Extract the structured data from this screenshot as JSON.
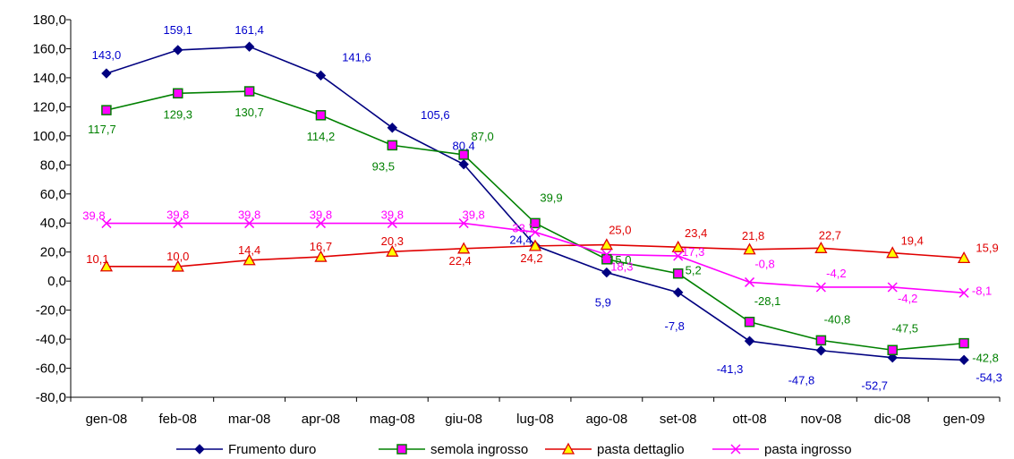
{
  "chart_data": {
    "type": "line",
    "title": "",
    "xlabel": "",
    "ylabel": "",
    "ylim": [
      -80,
      180
    ],
    "yticks": [
      "180,0",
      "160,0",
      "140,0",
      "120,0",
      "100,0",
      "80,0",
      "60,0",
      "40,0",
      "20,0",
      "0,0",
      "-20,0",
      "-40,0",
      "-60,0",
      "-80,0"
    ],
    "categories": [
      "gen-08",
      "feb-08",
      "mar-08",
      "apr-08",
      "mag-08",
      "giu-08",
      "lug-08",
      "ago-08",
      "set-08",
      "ott-08",
      "nov-08",
      "dic-08",
      "gen-09"
    ],
    "grid": false,
    "legend_position": "bottom",
    "series": [
      {
        "name": "Frumento duro",
        "color": "#000080",
        "label_color": "#0000CC",
        "marker": "diamond",
        "values": [
          143.0,
          159.1,
          161.4,
          141.6,
          105.6,
          80.4,
          24.4,
          5.9,
          -7.8,
          -41.3,
          -47.8,
          -52.7,
          -54.3
        ],
        "labels": [
          "143,0",
          "159,1",
          "161,4",
          "141,6",
          "105,6",
          "80,4",
          "24,4",
          "5,9",
          "-7,8",
          "-41,3",
          "-47,8",
          "-52,7",
          "-54,3"
        ]
      },
      {
        "name": "semola ingrosso",
        "color": "#008000",
        "label_color": "#008000",
        "marker": "square",
        "values": [
          117.7,
          129.3,
          130.7,
          114.2,
          93.5,
          87.0,
          39.9,
          15.0,
          5.2,
          -28.1,
          -40.8,
          -47.5,
          -42.8
        ],
        "labels": [
          "117,7",
          "129,3",
          "130,7",
          "114,2",
          "93,5",
          "87,0",
          "39,9",
          "15,0",
          "5,2",
          "-28,1",
          "-40,8",
          "-47,5",
          "-42,8"
        ]
      },
      {
        "name": "pasta dettaglio",
        "color": "#E00000",
        "label_color": "#E00000",
        "marker": "triangle",
        "values": [
          10.1,
          10.0,
          14.4,
          16.7,
          20.3,
          22.4,
          24.2,
          25.0,
          23.4,
          21.8,
          22.7,
          19.4,
          15.9
        ],
        "labels": [
          "10,1",
          "10,0",
          "14,4",
          "16,7",
          "20,3",
          "22,4",
          "24,2",
          "25,0",
          "23,4",
          "21,8",
          "22,7",
          "19,4",
          "15,9"
        ]
      },
      {
        "name": "pasta ingrosso",
        "color": "#FF00FF",
        "label_color": "#FF00FF",
        "marker": "x",
        "values": [
          39.8,
          39.8,
          39.8,
          39.8,
          39.8,
          39.8,
          33.7,
          18.3,
          17.3,
          -0.8,
          -4.2,
          -4.2,
          -8.1
        ],
        "labels": [
          "39,8",
          "39,8",
          "39,8",
          "39,8",
          "39,8",
          "39,8",
          "33,7",
          "18,3",
          "17,3",
          "-0,8",
          "-4,2",
          "-4,2",
          "-8,1"
        ]
      }
    ]
  }
}
